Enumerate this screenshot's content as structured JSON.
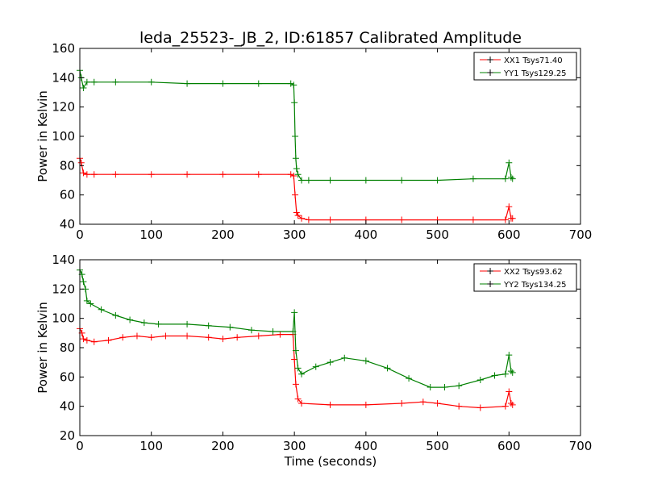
{
  "chart_data": [
    {
      "type": "line",
      "title": "leda_25523-_JB_2, ID:61857 Calibrated Amplitude",
      "xlabel": "",
      "ylabel": "Power in Kelvin",
      "xlim": [
        0,
        700
      ],
      "ylim": [
        40,
        160
      ],
      "xticks": [
        0,
        100,
        200,
        300,
        400,
        500,
        600,
        700
      ],
      "yticks": [
        40,
        60,
        80,
        100,
        120,
        140,
        160
      ],
      "grid": false,
      "legend_position": "top-right",
      "marker": "+",
      "series": [
        {
          "name": "XX1 Tsys71.40",
          "color": "#ff0000",
          "x": [
            0,
            2,
            5,
            10,
            20,
            50,
            100,
            150,
            200,
            250,
            295,
            299,
            301,
            303,
            305,
            310,
            320,
            350,
            400,
            450,
            500,
            550,
            595,
            600,
            603,
            605
          ],
          "y": [
            85,
            82,
            75,
            74,
            74,
            74,
            74,
            74,
            74,
            74,
            74,
            73,
            60,
            48,
            46,
            44,
            43,
            43,
            43,
            43,
            43,
            43,
            43,
            52,
            44,
            44
          ]
        },
        {
          "name": "YY1 Tsys129.25",
          "color": "#008000",
          "x": [
            0,
            2,
            5,
            10,
            20,
            50,
            100,
            150,
            200,
            250,
            295,
            299,
            300,
            301,
            302,
            303,
            305,
            310,
            320,
            350,
            400,
            450,
            500,
            550,
            595,
            600,
            603,
            605
          ],
          "y": [
            145,
            140,
            133,
            137,
            137,
            137,
            137,
            136,
            136,
            136,
            136,
            135,
            123,
            100,
            85,
            78,
            74,
            70,
            70,
            70,
            70,
            70,
            70,
            71,
            71,
            82,
            72,
            71
          ]
        }
      ]
    },
    {
      "type": "line",
      "title": "",
      "xlabel": "Time (seconds)",
      "ylabel": "Power in Kelvin",
      "xlim": [
        0,
        700
      ],
      "ylim": [
        20,
        140
      ],
      "xticks": [
        0,
        100,
        200,
        300,
        400,
        500,
        600,
        700
      ],
      "yticks": [
        20,
        40,
        60,
        80,
        100,
        120,
        140
      ],
      "grid": false,
      "legend_position": "top-right",
      "marker": "+",
      "series": [
        {
          "name": "XX2 Tsys93.62",
          "color": "#ff0000",
          "x": [
            0,
            3,
            5,
            10,
            20,
            40,
            60,
            80,
            100,
            120,
            150,
            180,
            200,
            220,
            250,
            280,
            298,
            300,
            302,
            305,
            310,
            350,
            400,
            450,
            480,
            500,
            530,
            560,
            595,
            600,
            603,
            605
          ],
          "y": [
            93,
            90,
            86,
            85,
            84,
            85,
            87,
            88,
            87,
            88,
            88,
            87,
            86,
            87,
            88,
            89,
            89,
            72,
            55,
            45,
            42,
            41,
            41,
            42,
            43,
            42,
            40,
            39,
            40,
            50,
            42,
            41
          ]
        },
        {
          "name": "YY2 Tsys134.25",
          "color": "#008000",
          "x": [
            0,
            3,
            5,
            8,
            10,
            15,
            30,
            50,
            70,
            90,
            110,
            150,
            180,
            210,
            240,
            270,
            298,
            300,
            302,
            305,
            310,
            330,
            350,
            370,
            400,
            430,
            460,
            490,
            510,
            530,
            560,
            580,
            595,
            600,
            603,
            605
          ],
          "y": [
            133,
            130,
            125,
            120,
            112,
            110,
            106,
            102,
            99,
            97,
            96,
            96,
            95,
            94,
            92,
            91,
            91,
            104,
            78,
            66,
            62,
            67,
            70,
            73,
            71,
            66,
            59,
            53,
            53,
            54,
            58,
            61,
            62,
            75,
            64,
            63
          ]
        }
      ]
    }
  ]
}
